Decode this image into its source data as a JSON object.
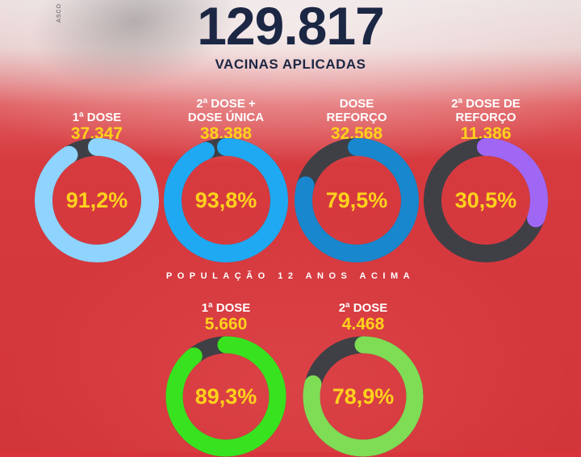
{
  "header": {
    "total": "129.817",
    "total_label": "VACINAS APLICADAS",
    "side_mark": "ASCO"
  },
  "section_title": "POPULAÇÃO 12 ANOS ACIMA",
  "doses": [
    {
      "label_lines": [
        "1ª DOSE"
      ],
      "count": "37.347",
      "percent_label": "91,2%",
      "percent": 91.2,
      "color": "#8fd3ff"
    },
    {
      "label_lines": [
        "2ª DOSE +",
        "DOSE ÚNICA"
      ],
      "count": "38.388",
      "percent_label": "93,8%",
      "percent": 93.8,
      "color": "#1fa9f2"
    },
    {
      "label_lines": [
        "DOSE",
        "REFORÇO"
      ],
      "count": "32.568",
      "percent_label": "79,5%",
      "percent": 79.5,
      "color": "#1887cd"
    },
    {
      "label_lines": [
        "2ª DOSE DE",
        "REFORÇO"
      ],
      "count": "11.386",
      "percent_label": "30,5%",
      "percent": 30.5,
      "color": "#a067f5"
    }
  ],
  "youth_doses": [
    {
      "label_lines": [
        "1ª DOSE"
      ],
      "count": "5.660",
      "percent_label": "89,3%",
      "percent": 89.3,
      "color": "#39e21f"
    },
    {
      "label_lines": [
        "2ª DOSE"
      ],
      "count": "4.468",
      "percent_label": "78,9%",
      "percent": 78.9,
      "color": "#7fdc55"
    }
  ],
  "track_color": "#3f4046"
}
